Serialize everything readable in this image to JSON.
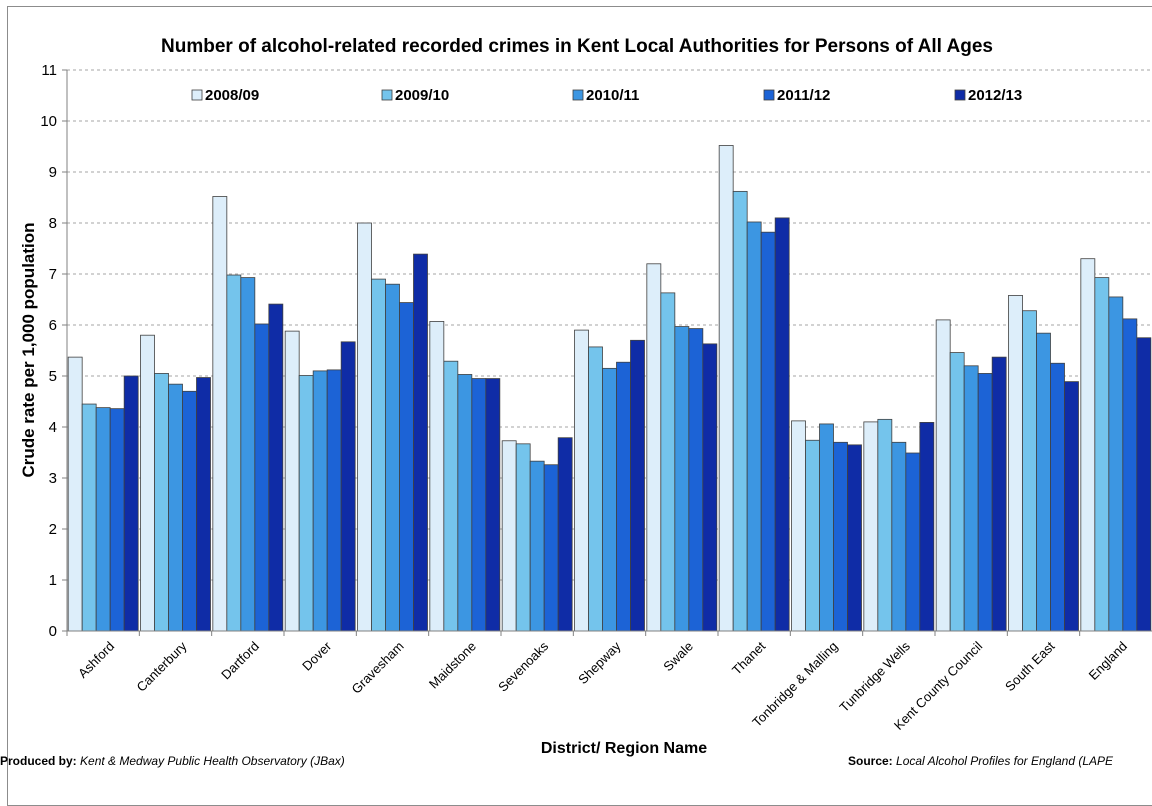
{
  "chart_data": {
    "type": "bar",
    "title": "Number of alcohol-related recorded crimes in Kent Local Authorities for Persons of All Ages",
    "xlabel": "District/ Region Name",
    "ylabel": "Crude rate per 1,000 population",
    "ylim": [
      0,
      11
    ],
    "yticks": [
      "0",
      "1",
      "2",
      "3",
      "4",
      "5",
      "6",
      "7",
      "8",
      "9",
      "10",
      "11"
    ],
    "grid": true,
    "legend_position": "top",
    "categories": [
      "Ashford",
      "Canterbury",
      "Dartford",
      "Dover",
      "Gravesham",
      "Maidstone",
      "Sevenoaks",
      "Shepway",
      "Swale",
      "Thanet",
      "Tonbridge & Malling",
      "Tunbridge Wells",
      "Kent County Council",
      "South East",
      "England"
    ],
    "series": [
      {
        "name": "2008/09",
        "color": "#ddeefa",
        "values": [
          5.37,
          5.8,
          8.52,
          5.88,
          8.0,
          6.07,
          3.73,
          5.9,
          7.2,
          9.52,
          4.12,
          4.1,
          6.1,
          6.58,
          7.3
        ]
      },
      {
        "name": "2009/10",
        "color": "#74c4ec",
        "values": [
          4.45,
          5.05,
          6.98,
          5.01,
          6.9,
          5.29,
          3.67,
          5.57,
          6.63,
          8.62,
          3.74,
          4.15,
          5.46,
          6.28,
          6.93
        ]
      },
      {
        "name": "2010/11",
        "color": "#3c96e2",
        "values": [
          4.38,
          4.84,
          6.93,
          5.1,
          6.8,
          5.03,
          3.33,
          5.15,
          5.97,
          8.02,
          4.06,
          3.7,
          5.2,
          5.84,
          6.55
        ]
      },
      {
        "name": "2011/12",
        "color": "#1c63d6",
        "values": [
          4.36,
          4.7,
          6.02,
          5.12,
          6.44,
          4.95,
          3.26,
          5.27,
          5.93,
          7.82,
          3.7,
          3.49,
          5.05,
          5.25,
          6.12
        ]
      },
      {
        "name": "2012/13",
        "color": "#0f2ca6",
        "values": [
          5.0,
          4.97,
          6.41,
          5.67,
          7.39,
          4.95,
          3.79,
          5.7,
          5.63,
          8.1,
          3.65,
          4.09,
          5.37,
          4.89,
          5.75
        ]
      }
    ]
  },
  "footer": {
    "produced_label": "Produced by:",
    "produced_value": "Kent & Medway Public Health Observatory (JBax)",
    "source_label": "Source:",
    "source_value": "Local Alcohol Profiles for England (LAPE"
  }
}
